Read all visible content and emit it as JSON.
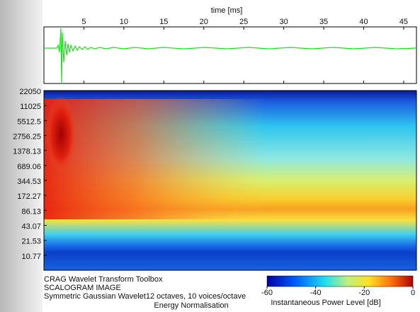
{
  "chart_data": [
    {
      "type": "line",
      "xlabel": "time [ms]",
      "xlim": [
        0,
        46.6
      ],
      "xticks": [
        5,
        10,
        15,
        20,
        25,
        30,
        35,
        40,
        45
      ],
      "color": "#22dd22"
    },
    {
      "type": "heatmap",
      "yscale": "log",
      "ylim": [
        5.4,
        22050
      ],
      "yticks": [
        22050,
        11025,
        5512.5,
        2756.25,
        1378.13,
        689.06,
        344.53,
        172.27,
        86.13,
        43.07,
        21.53,
        10.77
      ],
      "colorbar": {
        "label": "Instantaneous Power Level  [dB]",
        "lim": [
          -60,
          0
        ],
        "ticks": [
          -60,
          -40,
          -20,
          0
        ]
      }
    }
  ],
  "footer": {
    "lines": [
      "CRAG Wavelet Transform Toolbox",
      "SCALOGRAM IMAGE",
      "Symmetric Gaussian Wavelet12 octaves, 10 voices/octave",
      "Energy Normalisation"
    ]
  }
}
